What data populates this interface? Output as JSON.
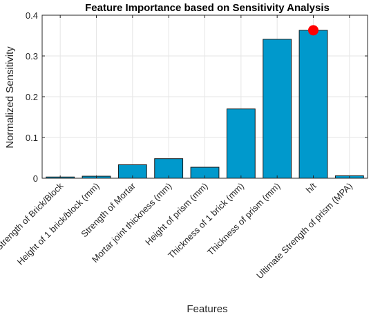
{
  "chart_data": {
    "type": "bar",
    "title": "Feature Importance based on Sensitivity Analysis",
    "xlabel": "Features",
    "ylabel": "Normalized Sensitivity",
    "categories": [
      "Strength of Brick/Block",
      "Height of 1 brick/block (mm)",
      "Strength of Mortar",
      "Mortar joint thickness (mm)",
      "Height of prism (mm)",
      "Thickness of 1 brick (mm)",
      "Thickness of prism (mm)",
      "h/t",
      "Ultimate Strength of prism (MPA)"
    ],
    "values": [
      0.003,
      0.005,
      0.033,
      0.048,
      0.027,
      0.17,
      0.341,
      0.363,
      0.006
    ],
    "ylim": [
      0,
      0.4
    ],
    "yticks": [
      "0",
      "0.1",
      "0.2",
      "0.3",
      "0.4"
    ],
    "grid": true,
    "bar_color": "#0099cc",
    "highlight": {
      "category": "h/t",
      "value": 0.363,
      "color": "#ff0000"
    }
  }
}
